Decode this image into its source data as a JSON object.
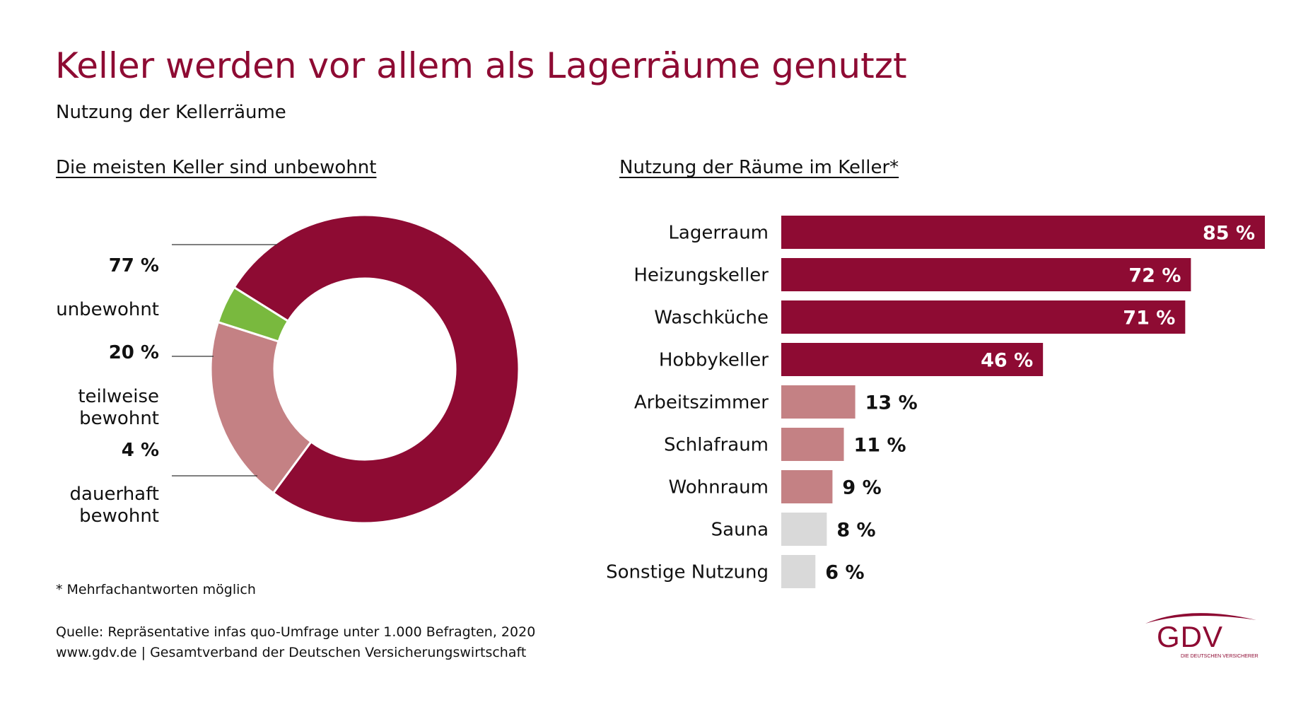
{
  "title": "Keller werden vor allem als Lagerräume genutzt",
  "subtitle": "Nutzung der Kellerräume",
  "footnote": "* Mehrfachantworten möglich",
  "source": {
    "line1": "Quelle: Repräsentative infas quo-Umfrage unter 1.000 Befragten, 2020",
    "line2": "www.gdv.de | Gesamtverband der Deutschen Versicherungswirtschaft"
  },
  "logo": {
    "text": "GDV",
    "sub": "DIE DEUTSCHEN VERSICHERER"
  },
  "colors": {
    "primary": "#8e0b33",
    "light_red": "#c48184",
    "green": "#79b93e",
    "gray": "#d9d9d9"
  },
  "chart_data": [
    {
      "type": "pie",
      "title": "Die meisten Keller sind unbewohnt",
      "slices": [
        {
          "pct_label": "77 %",
          "label": "unbewohnt",
          "value": 77,
          "color": "#8e0b33"
        },
        {
          "pct_label": "20 %",
          "label": "teilweise\nbewohnt",
          "value": 20,
          "color": "#c48184"
        },
        {
          "pct_label": "4 %",
          "label": "dauerhaft\nbewohnt",
          "value": 4,
          "color": "#79b93e"
        }
      ]
    },
    {
      "type": "bar",
      "orientation": "horizontal",
      "title": "Nutzung der Räume im Keller*",
      "categories": [
        "Lagerraum",
        "Heizungskeller",
        "Waschküche",
        "Hobbykeller",
        "Arbeitszimmer",
        "Schlafraum",
        "Wohnraum",
        "Sauna",
        "Sonstige Nutzung"
      ],
      "values": [
        85,
        72,
        71,
        46,
        13,
        11,
        9,
        8,
        6
      ],
      "value_labels": [
        "85 %",
        "72 %",
        "71 %",
        "46 %",
        "13 %",
        "11 %",
        "9 %",
        "8 %",
        "6 %"
      ],
      "colors": [
        "#8e0b33",
        "#8e0b33",
        "#8e0b33",
        "#8e0b33",
        "#c48184",
        "#c48184",
        "#c48184",
        "#d9d9d9",
        "#d9d9d9"
      ],
      "label_inside": [
        true,
        true,
        true,
        true,
        false,
        false,
        false,
        false,
        false
      ],
      "xlim": [
        0,
        85
      ]
    }
  ]
}
